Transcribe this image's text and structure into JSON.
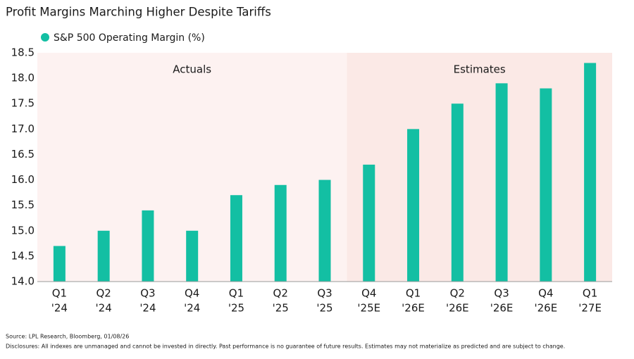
{
  "chart_data": {
    "type": "bar",
    "title": "Profit Margins Marching Higher Despite Tariffs",
    "series": [
      {
        "name": "S&P 500 Operating Margin (%)",
        "color": "#13bfa3",
        "values": [
          14.7,
          15.0,
          15.4,
          15.0,
          15.7,
          15.9,
          16.0,
          16.3,
          17.0,
          17.5,
          17.9,
          17.8,
          18.3
        ]
      }
    ],
    "categories": [
      [
        "Q1",
        "'24"
      ],
      [
        "Q2",
        "'24"
      ],
      [
        "Q3",
        "'24"
      ],
      [
        "Q4",
        "'24"
      ],
      [
        "Q1",
        "'25"
      ],
      [
        "Q2",
        "'25"
      ],
      [
        "Q3",
        "'25"
      ],
      [
        "Q4",
        "'25E"
      ],
      [
        "Q1",
        "'26E"
      ],
      [
        "Q2",
        "'26E"
      ],
      [
        "Q3",
        "'26E"
      ],
      [
        "Q4",
        "'26E"
      ],
      [
        "Q1",
        "'27E"
      ]
    ],
    "ylim": [
      14.0,
      18.5
    ],
    "yticks": [
      {
        "value": 14,
        "label": "14.0"
      },
      14.5,
      {
        "value": 15,
        "label": "15.0"
      },
      15.5,
      {
        "value": 16,
        "label": "16.0"
      },
      16.5,
      {
        "value": 17,
        "label": "17.0"
      },
      17.5,
      {
        "value": 18,
        "label": "18.0"
      },
      18.5
    ],
    "grid": false,
    "shaded_regions": [
      {
        "label": "Actuals",
        "color": "#fdf2f1",
        "first": 0,
        "last": 6
      },
      {
        "label": "Estimates",
        "color": "#fbe9e6",
        "first": 7,
        "last": 12
      }
    ],
    "source": "Source: LPL Research, Bloomberg, 01/08/26",
    "disclosure": "Disclosures: All indexes are unmanaged and cannot be invested in directly. Past performance is no guarantee of future results. Estimates may not materialize as predicted and are subject to change."
  }
}
